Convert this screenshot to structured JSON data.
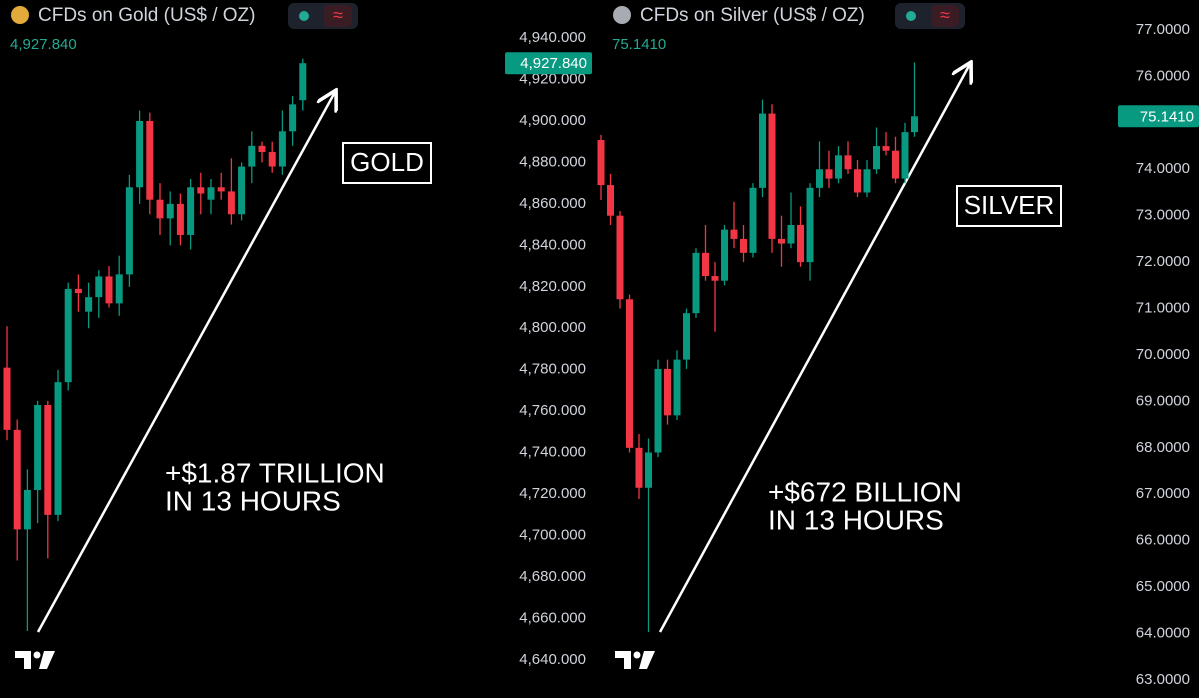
{
  "chart_data": [
    {
      "type": "candlestick",
      "title": "CFDs on Gold (US$ / OZ)",
      "price_label": "4,927.840",
      "annotation_box": "GOLD",
      "annotation_lines": [
        "+$1.87 TRILLION",
        "IN 13 HOURS"
      ],
      "up_color": "#089981",
      "down_color": "#f23645",
      "grid": false,
      "ylim": [
        4621.67,
        4958.33
      ],
      "yticks": [
        {
          "value": 4640,
          "label": "4,640.000"
        },
        {
          "value": 4660,
          "label": "4,660.000"
        },
        {
          "value": 4680,
          "label": "4,680.000"
        },
        {
          "value": 4700,
          "label": "4,700.000"
        },
        {
          "value": 4720,
          "label": "4,720.000"
        },
        {
          "value": 4740,
          "label": "4,740.000"
        },
        {
          "value": 4760,
          "label": "4,760.000"
        },
        {
          "value": 4780,
          "label": "4,780.000"
        },
        {
          "value": 4800,
          "label": "4,800.000"
        },
        {
          "value": 4820,
          "label": "4,820.000"
        },
        {
          "value": 4840,
          "label": "4,840.000"
        },
        {
          "value": 4860,
          "label": "4,860.000"
        },
        {
          "value": 4880,
          "label": "4,880.000"
        },
        {
          "value": 4900,
          "label": "4,900.000"
        },
        {
          "value": 4920,
          "label": "4,920.000"
        },
        {
          "value": 4940,
          "label": "4,940.000"
        }
      ],
      "open": [
        4781,
        4751,
        4703,
        4722,
        4763,
        4710,
        4774,
        4819,
        4808,
        4815,
        4825,
        4812,
        4826,
        4868,
        4900,
        4862,
        4853,
        4860,
        4845,
        4868,
        4862,
        4868,
        4866,
        4855,
        4878,
        4888,
        4885,
        4878,
        4895,
        4910
      ],
      "high": [
        4801,
        4756,
        4732,
        4765,
        4765,
        4780,
        4822,
        4826,
        4822,
        4828,
        4830,
        4835,
        4874,
        4905,
        4904,
        4870,
        4866,
        4865,
        4872,
        4875,
        4872,
        4875,
        4882,
        4880,
        4895,
        4890,
        4890,
        4905,
        4912,
        4930
      ],
      "low": [
        4746,
        4688,
        4654,
        4706,
        4689,
        4707,
        4770,
        4808,
        4800,
        4805,
        4810,
        4806,
        4820,
        4860,
        4855,
        4845,
        4840,
        4840,
        4838,
        4855,
        4855,
        4862,
        4850,
        4852,
        4870,
        4880,
        4875,
        4874,
        4888,
        4905
      ],
      "close": [
        4751,
        4703,
        4722,
        4763,
        4710,
        4774,
        4819,
        4817,
        4815,
        4825,
        4812,
        4826,
        4868,
        4900,
        4862,
        4853,
        4860,
        4845,
        4868,
        4865,
        4868,
        4866,
        4855,
        4878,
        4888,
        4885,
        4878,
        4895,
        4908,
        4927.84
      ]
    },
    {
      "type": "candlestick",
      "title": "CFDs on Silver (US$ / OZ)",
      "price_label": "75.1410",
      "annotation_box": "SILVER",
      "annotation_lines": [
        "+$672 BILLION",
        "IN 13 HOURS"
      ],
      "up_color": "#089981",
      "down_color": "#f23645",
      "grid": false,
      "ylim": [
        62.612,
        77.646
      ],
      "yticks": [
        {
          "value": 63,
          "label": "63.0000"
        },
        {
          "value": 64,
          "label": "64.0000"
        },
        {
          "value": 65,
          "label": "65.0000"
        },
        {
          "value": 66,
          "label": "66.0000"
        },
        {
          "value": 67,
          "label": "67.0000"
        },
        {
          "value": 68,
          "label": "68.0000"
        },
        {
          "value": 69,
          "label": "69.0000"
        },
        {
          "value": 70,
          "label": "70.0000"
        },
        {
          "value": 71,
          "label": "71.0000"
        },
        {
          "value": 72,
          "label": "72.0000"
        },
        {
          "value": 73,
          "label": "73.0000"
        },
        {
          "value": 74,
          "label": "74.0000"
        },
        {
          "value": 75,
          "label": "75.0000"
        },
        {
          "value": 76,
          "label": "76.0000"
        },
        {
          "value": 77,
          "label": "77.0000"
        }
      ],
      "open": [
        74.63,
        73.66,
        73.0,
        71.2,
        68.0,
        67.14,
        67.9,
        69.7,
        68.7,
        69.9,
        70.9,
        72.2,
        71.7,
        71.6,
        72.7,
        72.5,
        72.2,
        73.6,
        75.2,
        72.5,
        72.4,
        72.8,
        72.0,
        73.6,
        74.0,
        73.8,
        74.3,
        74.0,
        73.5,
        74.0,
        74.5,
        74.4,
        73.8,
        74.8
      ],
      "high": [
        74.74,
        73.9,
        73.1,
        71.3,
        68.3,
        68.2,
        69.9,
        69.9,
        70.1,
        71.0,
        72.3,
        72.8,
        72.0,
        72.8,
        73.3,
        72.8,
        73.7,
        75.5,
        75.4,
        73.0,
        73.5,
        73.2,
        73.7,
        74.6,
        74.4,
        74.5,
        74.6,
        74.2,
        74.2,
        74.9,
        74.8,
        74.7,
        75.0,
        76.3
      ],
      "low": [
        73.34,
        72.8,
        71.0,
        67.9,
        66.9,
        64.03,
        67.8,
        68.5,
        68.6,
        69.7,
        70.8,
        71.6,
        70.5,
        71.5,
        72.3,
        72.0,
        72.1,
        73.4,
        72.2,
        71.9,
        72.3,
        71.9,
        71.6,
        73.4,
        73.6,
        73.7,
        73.9,
        73.4,
        73.4,
        73.9,
        74.3,
        73.7,
        73.7,
        74.7
      ],
      "close": [
        73.66,
        73.0,
        71.2,
        68.0,
        67.14,
        67.9,
        69.7,
        68.7,
        69.9,
        70.9,
        72.2,
        71.7,
        71.6,
        72.7,
        72.5,
        72.2,
        73.6,
        75.2,
        72.5,
        72.4,
        72.8,
        72.0,
        73.6,
        74.0,
        73.8,
        74.3,
        74.0,
        73.5,
        74.0,
        74.5,
        74.4,
        73.8,
        74.8,
        75.141
      ]
    }
  ]
}
